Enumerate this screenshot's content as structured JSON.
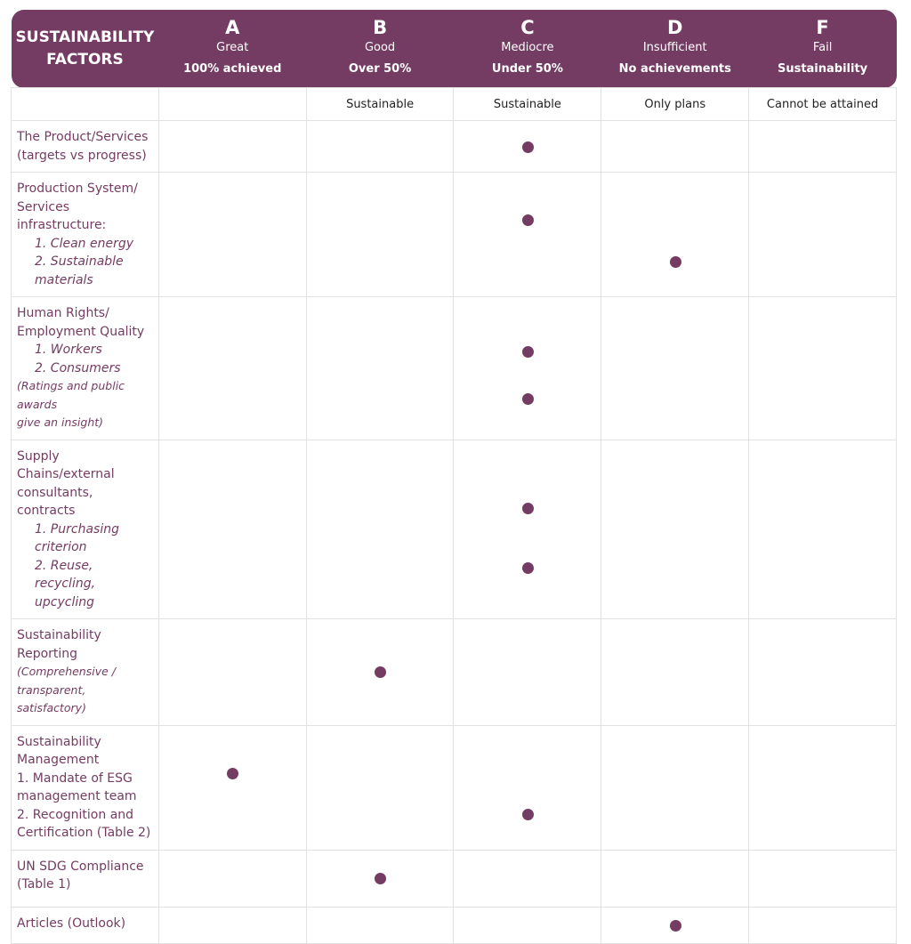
{
  "header": {
    "title": "SUSTAINABILITY FACTORS",
    "columns": [
      {
        "letter": "A",
        "grade": "Great",
        "summary": "100% achieved"
      },
      {
        "letter": "B",
        "grade": "Good",
        "summary": "Over 50%",
        "detail": "Sustainable"
      },
      {
        "letter": "C",
        "grade": "Mediocre",
        "summary": "Under 50%",
        "detail": "Sustainable"
      },
      {
        "letter": "D",
        "grade": "Insufficient",
        "summary": "No achievements",
        "detail": "Only plans"
      },
      {
        "letter": "F",
        "grade": "Fail",
        "summary": "Sustainability",
        "detail": "Cannot be attained"
      }
    ]
  },
  "rows": [
    {
      "heading": [
        "The Product/Services",
        "(targets vs progress)"
      ],
      "ratings": [
        "C"
      ]
    },
    {
      "heading": [
        "Production System/",
        "Services infrastructure:"
      ],
      "items": [
        "1. Clean energy",
        "2. Sustainable materials"
      ],
      "ratings": [
        "C",
        "D"
      ]
    },
    {
      "heading": [
        "Human Rights/",
        "Employment Quality"
      ],
      "items": [
        "1. Workers",
        "2. Consumers"
      ],
      "note": [
        "(Ratings and public awards",
        "give an insight)"
      ],
      "ratings": [
        "C",
        "C"
      ]
    },
    {
      "heading": [
        "Supply Chains/external",
        "consultants, contracts"
      ],
      "items": [
        "1. Purchasing  criterion",
        "2. Reuse, recycling,",
        "upcycling"
      ],
      "ratings": [
        "C",
        "C"
      ]
    },
    {
      "heading": [
        "Sustainability Reporting"
      ],
      "note": [
        "(Comprehensive / transparent,",
        "satisfactory)"
      ],
      "ratings": [
        "B"
      ]
    },
    {
      "heading": [
        "Sustainability Management",
        "1. Mandate of ESG",
        "management team",
        "2. Recognition and",
        "Certification (Table 2)"
      ],
      "ratings": [
        "A",
        "C"
      ]
    },
    {
      "heading": [
        "UN SDG Compliance",
        "(Table 1)"
      ],
      "ratings": [
        "B"
      ]
    },
    {
      "heading": [
        "Articles (Outlook)"
      ],
      "ratings": [
        "D"
      ]
    }
  ]
}
